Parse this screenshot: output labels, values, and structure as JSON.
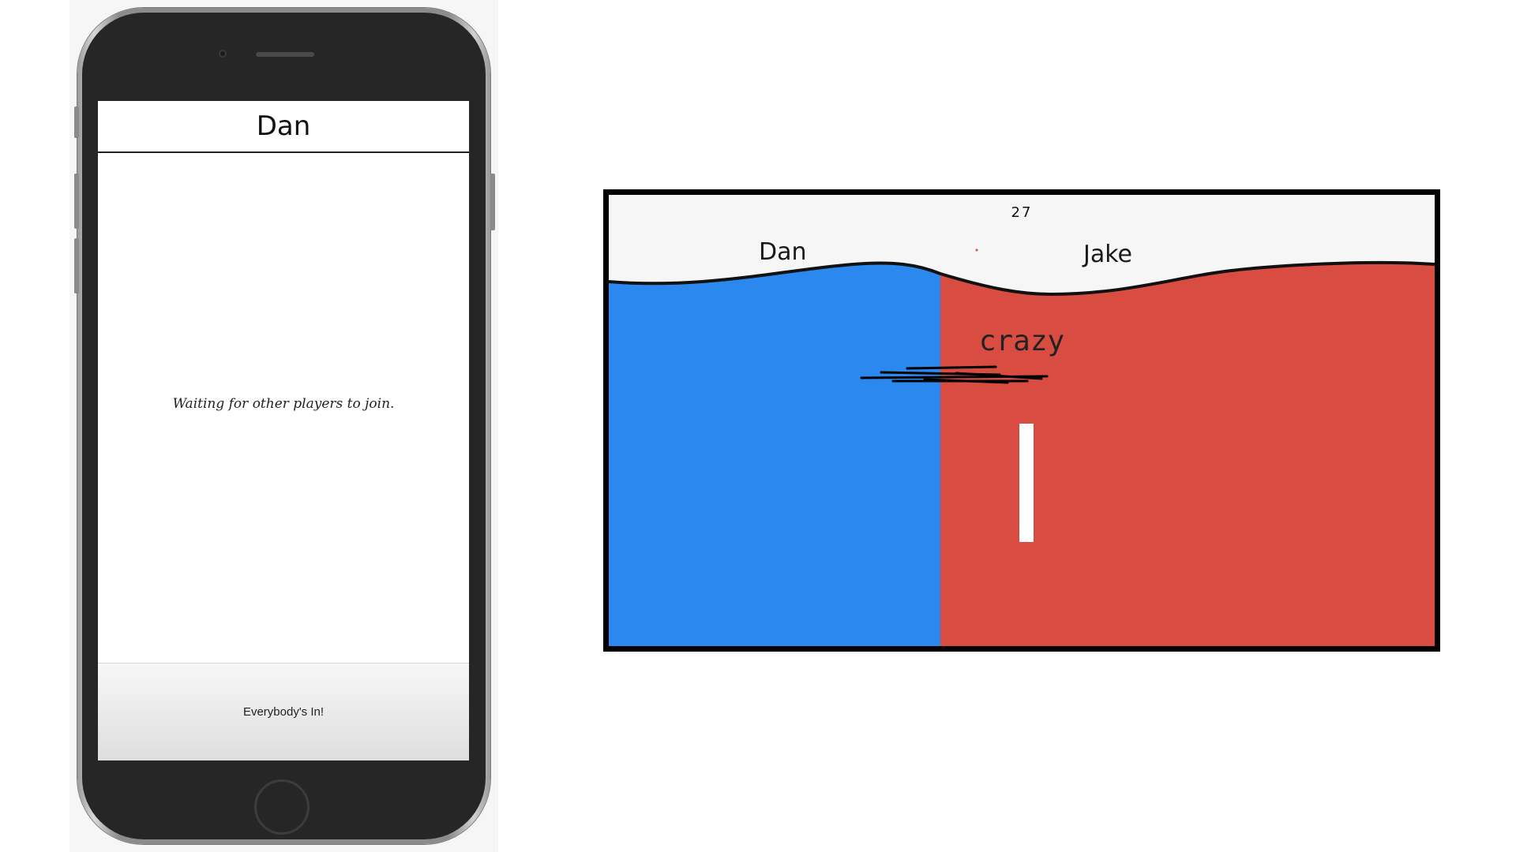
{
  "phone": {
    "player_name": "Dan",
    "status_message": "Waiting for other players to join.",
    "start_button_label": "Everybody's In!"
  },
  "game": {
    "timer": "27",
    "word": "crazy",
    "players": [
      {
        "name": "Dan",
        "color": "#2b88ee",
        "side": "left"
      },
      {
        "name": "Jake",
        "color": "#d94c41",
        "side": "right"
      }
    ]
  },
  "colors": {
    "team_left": "#2b88ee",
    "team_right": "#d94c41",
    "board_background": "#f6f6f6",
    "phone_body": "#262626"
  }
}
